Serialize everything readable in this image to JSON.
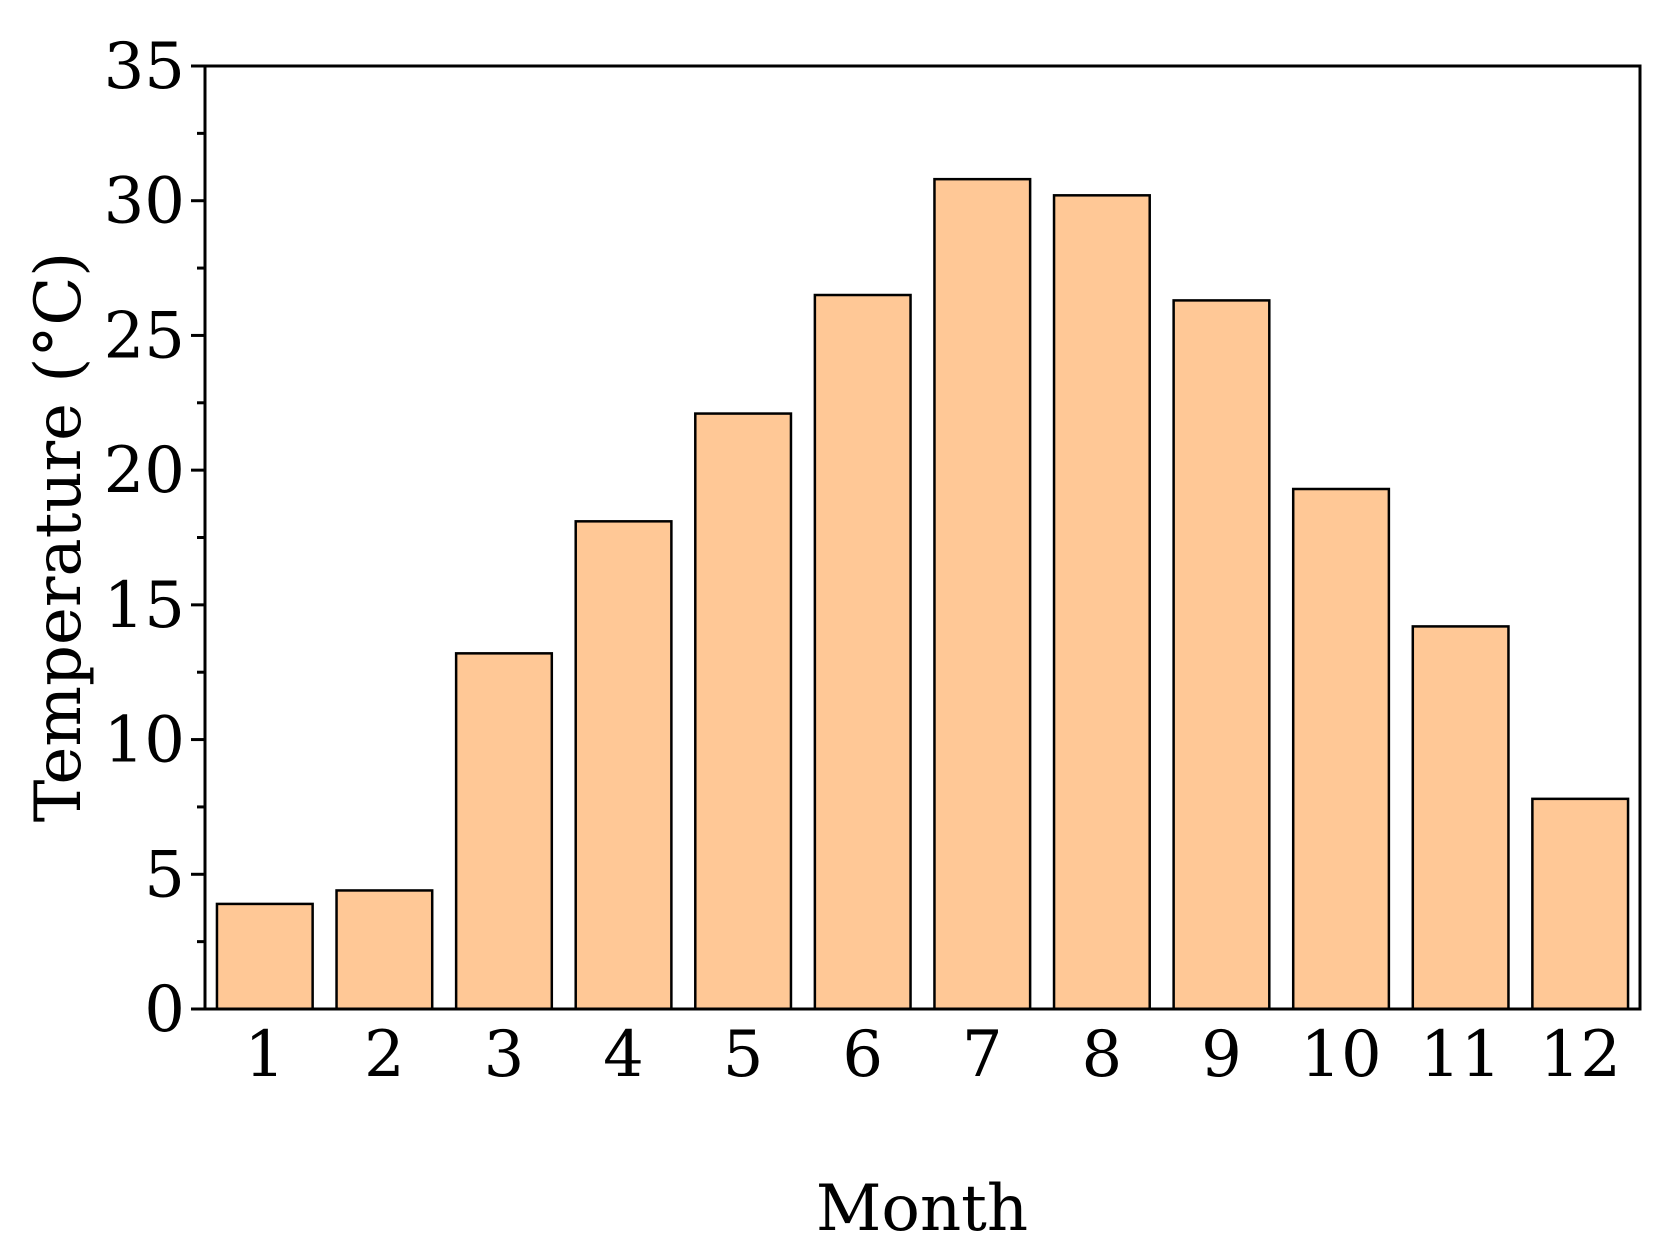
{
  "chart_data": {
    "type": "bar",
    "categories": [
      "1",
      "2",
      "3",
      "4",
      "5",
      "6",
      "7",
      "8",
      "9",
      "10",
      "11",
      "12"
    ],
    "values": [
      3.9,
      4.4,
      13.2,
      18.1,
      22.1,
      26.5,
      30.8,
      30.2,
      26.3,
      19.3,
      14.2,
      7.8
    ],
    "title": "",
    "xlabel": "Month",
    "ylabel": "Temperature (°C)",
    "ylim": [
      0,
      35
    ],
    "yticks": [
      0,
      5,
      10,
      15,
      20,
      25,
      30,
      35
    ],
    "grid": false,
    "bar_color": "#ffc896",
    "edge_color": "#000000"
  }
}
